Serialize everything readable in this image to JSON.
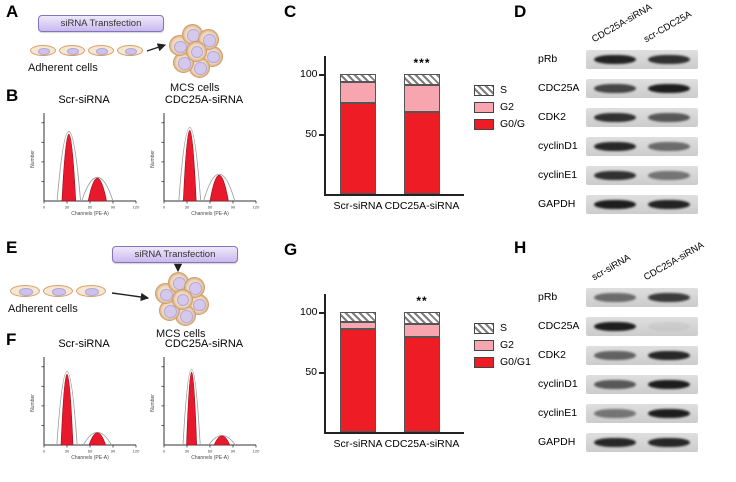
{
  "panels": {
    "A": {
      "label": "A",
      "transfection_box": "siRNA Transfection",
      "adherent_label": "Adherent cells",
      "mcs_label": "MCS cells"
    },
    "B": {
      "label": "B",
      "xlabel": "Channels (PE-A)",
      "ylabel": "Number",
      "xticks": [
        0,
        30,
        60,
        90,
        120
      ],
      "plots": [
        {
          "title": "Scr-siRNA",
          "peaks": [
            {
              "x": 0.27,
              "h": 0.88,
              "w": 0.075
            },
            {
              "x": 0.58,
              "h": 0.3,
              "w": 0.1
            }
          ]
        },
        {
          "title": "CDC25A-siRNA",
          "peaks": [
            {
              "x": 0.28,
              "h": 0.93,
              "w": 0.07
            },
            {
              "x": 0.6,
              "h": 0.34,
              "w": 0.1
            }
          ]
        }
      ]
    },
    "C": {
      "label": "C"
    },
    "D": {
      "label": "D",
      "lanes": [
        "CDC25A-siRNA",
        "scr-CDC25A"
      ],
      "rows": [
        {
          "protein": "pRb",
          "bands": [
            0.92,
            0.85
          ]
        },
        {
          "protein": "CDC25A",
          "bands": [
            0.75,
            0.95
          ]
        },
        {
          "protein": "CDK2",
          "bands": [
            0.85,
            0.65
          ]
        },
        {
          "protein": "cyclinD1",
          "bands": [
            0.9,
            0.55
          ]
        },
        {
          "protein": "cyclinE1",
          "bands": [
            0.85,
            0.5
          ]
        },
        {
          "protein": "GAPDH",
          "bands": [
            0.95,
            0.92
          ]
        }
      ]
    },
    "E": {
      "label": "E",
      "transfection_box": "siRNA Transfection",
      "adherent_label": "Adherent cells",
      "mcs_label": "MCS cells"
    },
    "F": {
      "label": "F",
      "xlabel": "Channels (PE-A)",
      "ylabel": "Number",
      "xticks": [
        0,
        30,
        60,
        90,
        120
      ],
      "plots": [
        {
          "title": "Scr-siRNA",
          "peaks": [
            {
              "x": 0.25,
              "h": 0.93,
              "w": 0.065
            },
            {
              "x": 0.58,
              "h": 0.16,
              "w": 0.09
            }
          ]
        },
        {
          "title": "CDC25A-siRNA",
          "peaks": [
            {
              "x": 0.3,
              "h": 0.96,
              "w": 0.055
            },
            {
              "x": 0.63,
              "h": 0.12,
              "w": 0.085
            }
          ]
        }
      ]
    },
    "G": {
      "label": "G"
    },
    "H": {
      "label": "H",
      "lanes": [
        "scr-siRNA",
        "CDC25A-siRNA"
      ],
      "rows": [
        {
          "protein": "pRb",
          "bands": [
            0.55,
            0.8
          ]
        },
        {
          "protein": "CDC25A",
          "bands": [
            0.95,
            0.05
          ]
        },
        {
          "protein": "CDK2",
          "bands": [
            0.6,
            0.9
          ]
        },
        {
          "protein": "cyclinD1",
          "bands": [
            0.65,
            0.95
          ]
        },
        {
          "protein": "cyclinE1",
          "bands": [
            0.5,
            0.95
          ]
        },
        {
          "protein": "GAPDH",
          "bands": [
            0.9,
            0.9
          ]
        }
      ]
    }
  },
  "chart_data": [
    {
      "panel": "C",
      "type": "bar",
      "stacked": true,
      "categories": [
        "Scr-siRNA",
        "CDC25A-siRNA"
      ],
      "series": [
        {
          "name": "G0/G",
          "color": "#ee1c25",
          "values": [
            76,
            68
          ]
        },
        {
          "name": "G2",
          "color": "#f7a6b0",
          "values": [
            17,
            23
          ]
        },
        {
          "name": "S",
          "color": "hatch",
          "values": [
            7,
            9
          ]
        }
      ],
      "legend_order": [
        "S",
        "G2",
        "G0/G"
      ],
      "ylim": [
        0,
        115
      ],
      "yticks": [
        50,
        100
      ],
      "grid": false,
      "legend_position": "right",
      "significance": {
        "category": "CDC25A-siRNA",
        "label": "***"
      }
    },
    {
      "panel": "G",
      "type": "bar",
      "stacked": true,
      "categories": [
        "Scr-siRNA",
        "CDC25A-siRNA"
      ],
      "series": [
        {
          "name": "G0/G1",
          "color": "#ee1c25",
          "values": [
            86,
            79
          ]
        },
        {
          "name": "G2",
          "color": "#f7a6b0",
          "values": [
            6,
            11
          ]
        },
        {
          "name": "S",
          "color": "hatch",
          "values": [
            8,
            10
          ]
        }
      ],
      "legend_order": [
        "S",
        "G2",
        "G0/G1"
      ],
      "ylim": [
        0,
        115
      ],
      "yticks": [
        50,
        100
      ],
      "grid": false,
      "legend_position": "right",
      "significance": {
        "category": "CDC25A-siRNA",
        "label": "**"
      }
    }
  ],
  "colors": {
    "g0_red": "#ee1c25",
    "g2_pink": "#f7a6b0",
    "flow_peak_red": "#e8192c",
    "box_fill": "#c9b9ef",
    "box_border": "#8474bd"
  }
}
